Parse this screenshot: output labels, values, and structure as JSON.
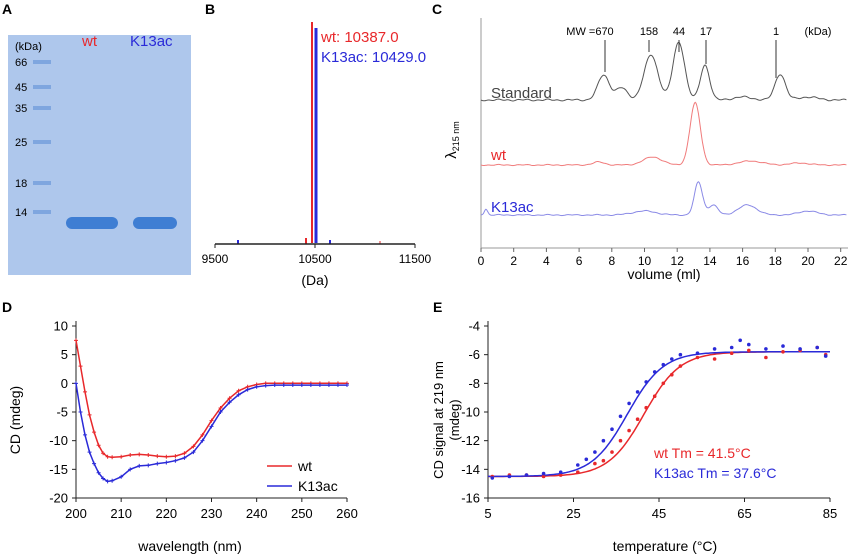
{
  "colors": {
    "wt": "#e8282b",
    "k13ac": "#2a2ad8",
    "standard": "#555555",
    "gel": "#aec7ec",
    "band": "#3f7ed3"
  },
  "panelA": {
    "letter": "A",
    "unit_label": "(kDa)",
    "lane_labels": [
      "wt",
      "K13ac"
    ],
    "markers": [
      "66",
      "45",
      "35",
      "25",
      "18",
      "14"
    ]
  },
  "panelB": {
    "letter": "B",
    "label_wt": "wt: 10387.0",
    "label_k13ac": "K13ac: 10429.0",
    "xticks": [
      "9500",
      "10500",
      "11500"
    ],
    "xlabel": "(Da)"
  },
  "panelC": {
    "letter": "C",
    "mw_labels": [
      "MW =670",
      "158",
      "44",
      "17",
      "1",
      "(kDa)"
    ],
    "trace_labels": [
      "Standard",
      "wt",
      "K13ac"
    ],
    "ylabel": "λ",
    "ylabel_sub": "215 nm",
    "xticks": [
      "0",
      "2",
      "4",
      "6",
      "8",
      "10",
      "12",
      "14",
      "16",
      "18",
      "20",
      "22"
    ],
    "xlabel": "volume (ml)"
  },
  "panelD": {
    "letter": "D",
    "ylabel": "CD (mdeg)",
    "xlabel": "wavelength (nm)",
    "legend": [
      "wt",
      "K13ac"
    ]
  },
  "panelE": {
    "letter": "E",
    "ylabel": "CD signal at 219 nm",
    "ylabel2": "(mdeg)",
    "xlabel": "temperature (°C)",
    "tm_wt": "wt Tm = 41.5°C",
    "tm_k13ac": "K13ac Tm = 37.6°C"
  },
  "chart_data": [
    {
      "type": "line",
      "title": "D",
      "xlabel": "wavelength (nm)",
      "ylabel": "CD (mdeg)",
      "xlim": [
        200,
        260
      ],
      "ylim": [
        -20,
        10
      ],
      "xticks": [
        200,
        210,
        220,
        230,
        240,
        250,
        260
      ],
      "yticks": [
        -20,
        -15,
        -10,
        -5,
        0,
        5,
        10
      ],
      "series": [
        {
          "name": "wt",
          "x": [
            200,
            201,
            202,
            203,
            204,
            205,
            206,
            207,
            208,
            210,
            212,
            214,
            216,
            218,
            220,
            222,
            224,
            226,
            228,
            230,
            232,
            234,
            236,
            238,
            240,
            242,
            244,
            246,
            248,
            250,
            252,
            254,
            256,
            258,
            260
          ],
          "values": [
            7.5,
            3,
            -1.5,
            -5.5,
            -8.5,
            -10.8,
            -12.2,
            -12.8,
            -12.9,
            -12.8,
            -12.5,
            -12.4,
            -12.5,
            -12.7,
            -12.8,
            -12.7,
            -12.2,
            -11,
            -9,
            -6.5,
            -4.3,
            -2.6,
            -1.3,
            -0.6,
            -0.2,
            0,
            0,
            0,
            0,
            0,
            0,
            0,
            0,
            0,
            0
          ]
        },
        {
          "name": "K13ac",
          "x": [
            200,
            201,
            202,
            203,
            204,
            205,
            206,
            207,
            208,
            210,
            212,
            214,
            216,
            218,
            220,
            222,
            224,
            226,
            228,
            230,
            232,
            234,
            236,
            238,
            240,
            242,
            244,
            246,
            248,
            250,
            252,
            254,
            256,
            258,
            260
          ],
          "values": [
            0,
            -5,
            -9,
            -12,
            -14,
            -15.6,
            -16.6,
            -17.1,
            -17,
            -16.3,
            -15,
            -14.4,
            -14.3,
            -14,
            -13.8,
            -13.5,
            -13,
            -12,
            -10,
            -7.5,
            -5,
            -3.3,
            -2,
            -1.1,
            -0.6,
            -0.4,
            -0.3,
            -0.3,
            -0.3,
            -0.3,
            -0.3,
            -0.3,
            -0.3,
            -0.3,
            -0.3
          ]
        }
      ]
    },
    {
      "type": "scatter",
      "title": "E",
      "xlabel": "temperature (°C)",
      "ylabel": "CD signal at 219 nm (mdeg)",
      "xlim": [
        5,
        85
      ],
      "ylim": [
        -16,
        -4
      ],
      "xticks": [
        5,
        25,
        45,
        65,
        85
      ],
      "yticks": [
        -16,
        -14,
        -12,
        -10,
        -8,
        -6,
        -4
      ],
      "series": [
        {
          "name": "wt",
          "tm": 41.5,
          "x": [
            6,
            10,
            14,
            18,
            22,
            26,
            30,
            32,
            34,
            36,
            38,
            40,
            42,
            44,
            46,
            48,
            50,
            54,
            58,
            62,
            66,
            70,
            74,
            78,
            82,
            84
          ],
          "values": [
            -14.5,
            -14.4,
            -14.4,
            -14.5,
            -14.4,
            -14.2,
            -13.6,
            -13.4,
            -12.8,
            -12.0,
            -11.3,
            -10.5,
            -9.7,
            -8.9,
            -8.0,
            -7.4,
            -6.8,
            -6.2,
            -6.3,
            -5.9,
            -5.7,
            -6.2,
            -5.8,
            -5.7,
            -5.5,
            -6.0
          ]
        },
        {
          "name": "K13ac",
          "tm": 37.6,
          "x": [
            6,
            10,
            14,
            18,
            22,
            26,
            28,
            30,
            32,
            34,
            36,
            38,
            40,
            42,
            44,
            46,
            48,
            50,
            54,
            58,
            62,
            64,
            66,
            70,
            74,
            78,
            82,
            84
          ],
          "values": [
            -14.6,
            -14.5,
            -14.4,
            -14.3,
            -14.2,
            -13.7,
            -13.3,
            -12.8,
            -12.0,
            -11.2,
            -10.3,
            -9.4,
            -8.6,
            -7.9,
            -7.2,
            -6.7,
            -6.3,
            -6.0,
            -5.9,
            -5.6,
            -5.5,
            -5.0,
            -5.3,
            -5.6,
            -5.4,
            -5.6,
            -5.5,
            -6.1
          ]
        }
      ]
    }
  ]
}
